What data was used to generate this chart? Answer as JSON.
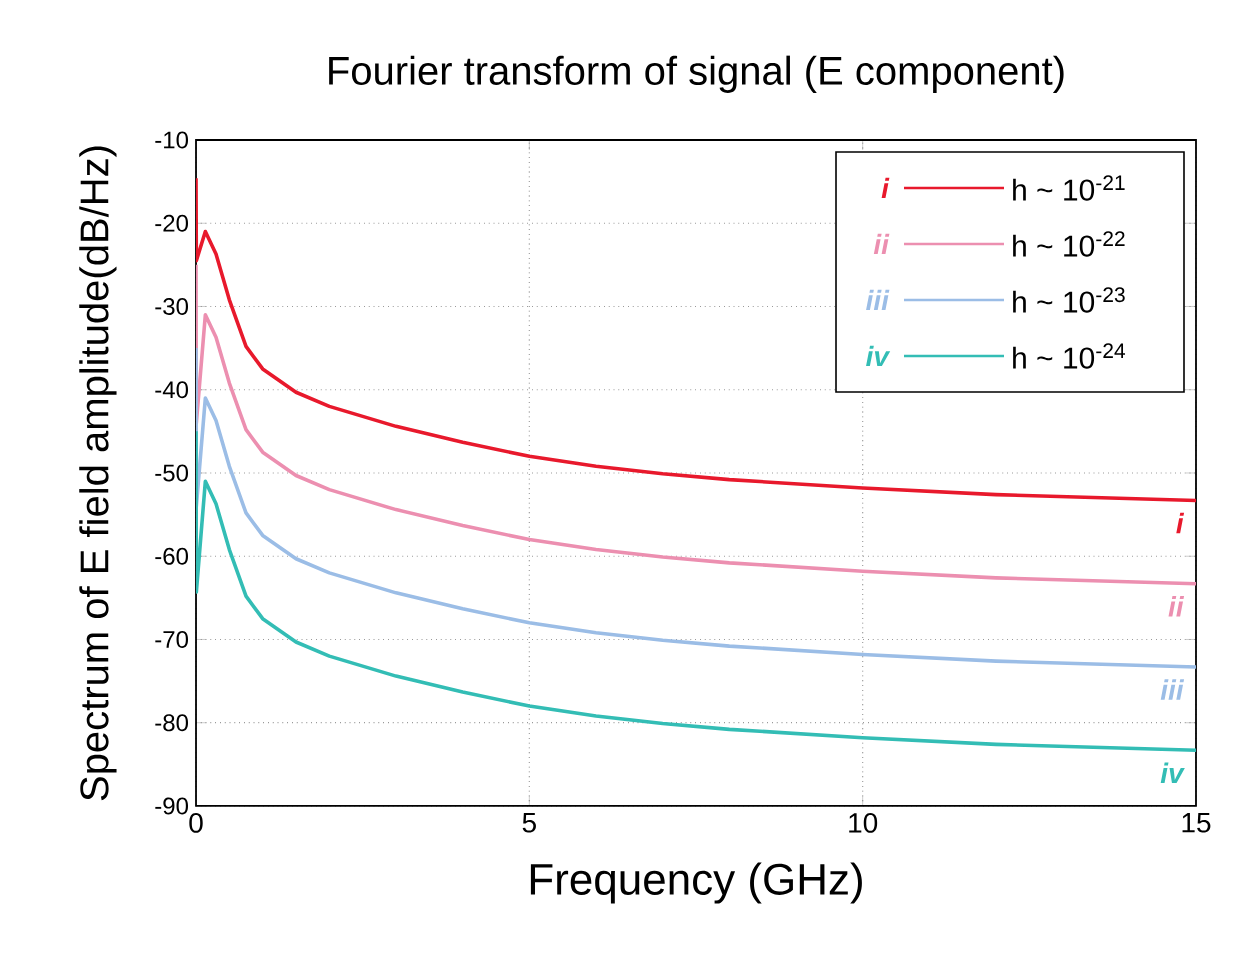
{
  "chart_data": {
    "type": "line",
    "title": "Fourier transform of signal (E component)",
    "xlabel": "Frequency (GHz)",
    "ylabel": "Spectrum of E field amplitude(dB/Hz)",
    "x": [
      0,
      0.005,
      0.14,
      0.3,
      0.5,
      0.75,
      1,
      1.5,
      2,
      3,
      4,
      5,
      6,
      7,
      8,
      10,
      12,
      15
    ],
    "series": [
      {
        "name": "h ~ 10$^{-21}$",
        "color": "#e8192c",
        "values": [
          -14.6,
          -24.5,
          -21,
          -23.7,
          -29.2,
          -34.8,
          -37.5,
          -40.3,
          -42,
          -44.4,
          -46.3,
          -48,
          -49.2,
          -50.1,
          -50.8,
          -51.8,
          -52.6,
          -53.3
        ]
      },
      {
        "name": "h ~ 10$^{-22}$",
        "color": "#ec8fb0",
        "values": [
          -25,
          -44,
          -31,
          -33.7,
          -39.2,
          -44.8,
          -47.5,
          -50.3,
          -52,
          -54.4,
          -56.3,
          -58,
          -59.2,
          -60.1,
          -60.8,
          -61.8,
          -62.6,
          -63.3
        ]
      },
      {
        "name": "h ~ 10$^{-23}$",
        "color": "#9bbde6",
        "values": [
          -35,
          -54,
          -41,
          -43.7,
          -49.2,
          -54.8,
          -57.5,
          -60.3,
          -62,
          -64.4,
          -66.3,
          -68,
          -69.2,
          -70.1,
          -70.8,
          -71.8,
          -72.6,
          -73.3
        ]
      },
      {
        "name": "h ~ 10$^{-24}$",
        "color": "#33bdb5",
        "values": [
          -45,
          -64.3,
          -51,
          -53.7,
          -59.2,
          -64.8,
          -67.5,
          -70.3,
          -72,
          -74.4,
          -76.3,
          -78,
          -79.2,
          -80.1,
          -80.8,
          -81.8,
          -82.6,
          -83.3
        ]
      }
    ],
    "annotations": [
      "i",
      "ii",
      "iii",
      "iv"
    ],
    "xlim": [
      0,
      15
    ],
    "ylim": [
      -90,
      -10
    ],
    "xticks": [
      0,
      5,
      10,
      15
    ],
    "yticks": [
      -90,
      -80,
      -70,
      -60,
      -50,
      -40,
      -30,
      -20,
      -10
    ],
    "grid": true,
    "legend": "top right",
    "line_style": "solid"
  }
}
